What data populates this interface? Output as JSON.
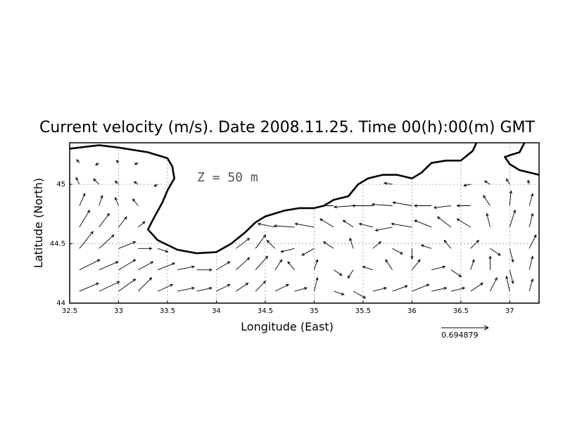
{
  "chart_data": {
    "type": "vector-field",
    "title": "Current velocity (m/s). Date 2008.11.25. Time 00(h):00(m) GMT",
    "xlabel": "Longitude (East)",
    "ylabel": "Latitude (North)",
    "annotation": "Z = 50 m",
    "reference_vector_label": "0.694879",
    "reference_vector_magnitude": 0.694879,
    "xlim": [
      32.5,
      37.3
    ],
    "ylim": [
      44.0,
      45.35
    ],
    "xticks": [
      32.5,
      33,
      33.5,
      34,
      34.5,
      35,
      35.5,
      36,
      36.5,
      37
    ],
    "xtick_labels": [
      "32.5",
      "33",
      "33.5",
      "34",
      "34.5",
      "35",
      "35.5",
      "36",
      "36.5",
      "37"
    ],
    "yticks": [
      44,
      44.5,
      45
    ],
    "ytick_labels": [
      "44",
      "44.5",
      "45"
    ],
    "grid": true,
    "coastline": [
      [
        32.5,
        45.3
      ],
      [
        32.8,
        45.33
      ],
      [
        33.0,
        45.31
      ],
      [
        33.3,
        45.27
      ],
      [
        33.5,
        45.22
      ],
      [
        33.55,
        45.15
      ],
      [
        33.57,
        45.05
      ],
      [
        33.5,
        44.95
      ],
      [
        33.45,
        44.85
      ],
      [
        33.35,
        44.7
      ],
      [
        33.3,
        44.62
      ],
      [
        33.4,
        44.53
      ],
      [
        33.6,
        44.45
      ],
      [
        33.8,
        44.42
      ],
      [
        34.0,
        44.43
      ],
      [
        34.15,
        44.5
      ],
      [
        34.3,
        44.6
      ],
      [
        34.4,
        44.68
      ],
      [
        34.5,
        44.73
      ],
      [
        34.7,
        44.78
      ],
      [
        34.85,
        44.8
      ],
      [
        35.0,
        44.8
      ],
      [
        35.1,
        44.82
      ],
      [
        35.2,
        44.87
      ],
      [
        35.35,
        44.9
      ],
      [
        35.45,
        45.0
      ],
      [
        35.55,
        45.05
      ],
      [
        35.7,
        45.08
      ],
      [
        35.85,
        45.08
      ],
      [
        36.0,
        45.05
      ],
      [
        36.1,
        45.1
      ],
      [
        36.2,
        45.18
      ],
      [
        36.35,
        45.2
      ],
      [
        36.5,
        45.2
      ],
      [
        36.62,
        45.28
      ],
      [
        36.66,
        45.35
      ]
    ],
    "vectors": [
      [
        32.6,
        44.1,
        0.28,
        0.12
      ],
      [
        32.8,
        44.1,
        0.3,
        0.14
      ],
      [
        33.0,
        44.1,
        0.25,
        0.18
      ],
      [
        33.2,
        44.1,
        0.2,
        0.2
      ],
      [
        33.4,
        44.1,
        0.22,
        0.1
      ],
      [
        33.6,
        44.1,
        0.25,
        0.05
      ],
      [
        33.8,
        44.1,
        0.22,
        0.05
      ],
      [
        34.0,
        44.1,
        0.2,
        0.1
      ],
      [
        34.2,
        44.1,
        0.18,
        0.12
      ],
      [
        34.4,
        44.1,
        0.15,
        0.15
      ],
      [
        34.6,
        44.1,
        0.2,
        0.1
      ],
      [
        34.8,
        44.1,
        0.18,
        0.05
      ],
      [
        35.0,
        44.1,
        0.05,
        0.2
      ],
      [
        35.2,
        44.1,
        0.15,
        -0.05
      ],
      [
        35.4,
        44.1,
        0.18,
        -0.1
      ],
      [
        35.6,
        44.1,
        0.2,
        0.05
      ],
      [
        35.8,
        44.1,
        0.22,
        0.08
      ],
      [
        36.0,
        44.1,
        0.25,
        0.1
      ],
      [
        36.2,
        44.1,
        0.22,
        0.05
      ],
      [
        36.4,
        44.1,
        0.2,
        0.05
      ],
      [
        36.6,
        44.1,
        0.18,
        0.12
      ],
      [
        36.8,
        44.1,
        0.1,
        0.2
      ],
      [
        37.0,
        44.1,
        -0.05,
        0.22
      ],
      [
        37.2,
        44.1,
        0.05,
        0.18
      ],
      [
        32.6,
        44.28,
        0.3,
        0.15
      ],
      [
        32.8,
        44.28,
        0.28,
        0.12
      ],
      [
        33.0,
        44.28,
        0.25,
        0.15
      ],
      [
        33.2,
        44.28,
        0.22,
        0.12
      ],
      [
        33.4,
        44.28,
        0.25,
        0.1
      ],
      [
        33.6,
        44.28,
        0.25,
        0.05
      ],
      [
        33.8,
        44.28,
        0.22,
        0.0
      ],
      [
        34.0,
        44.28,
        0.2,
        0.12
      ],
      [
        34.2,
        44.28,
        0.2,
        0.18
      ],
      [
        34.4,
        44.28,
        0.18,
        0.2
      ],
      [
        34.6,
        44.28,
        0.1,
        0.15
      ],
      [
        34.8,
        44.28,
        -0.1,
        0.12
      ],
      [
        35.0,
        44.28,
        0.05,
        0.15
      ],
      [
        35.2,
        44.28,
        0.12,
        -0.08
      ],
      [
        35.4,
        44.28,
        -0.08,
        -0.12
      ],
      [
        35.6,
        44.28,
        -0.15,
        0.05
      ],
      [
        35.8,
        44.28,
        -0.1,
        0.15
      ],
      [
        36.0,
        44.28,
        0.12,
        0.15
      ],
      [
        36.2,
        44.28,
        0.2,
        0.05
      ],
      [
        36.4,
        44.28,
        0.15,
        -0.1
      ],
      [
        36.6,
        44.28,
        0.05,
        0.15
      ],
      [
        36.8,
        44.28,
        0.0,
        0.2
      ],
      [
        37.0,
        44.28,
        0.05,
        -0.2
      ],
      [
        37.2,
        44.28,
        0.05,
        0.2
      ],
      [
        32.6,
        44.46,
        0.2,
        0.25
      ],
      [
        32.8,
        44.46,
        0.22,
        0.2
      ],
      [
        33.0,
        44.46,
        0.25,
        0.1
      ],
      [
        33.2,
        44.46,
        0.2,
        0.0
      ],
      [
        33.4,
        44.46,
        0.15,
        -0.05
      ],
      [
        34.2,
        44.46,
        0.2,
        0.15
      ],
      [
        34.4,
        44.46,
        0.15,
        0.2
      ],
      [
        34.6,
        44.46,
        -0.12,
        0.12
      ],
      [
        34.8,
        44.46,
        -0.2,
        -0.05
      ],
      [
        35.0,
        44.46,
        -0.18,
        -0.1
      ],
      [
        35.2,
        44.46,
        -0.15,
        0.1
      ],
      [
        35.4,
        44.46,
        -0.05,
        0.15
      ],
      [
        35.6,
        44.46,
        0.12,
        0.1
      ],
      [
        35.8,
        44.46,
        0.15,
        -0.08
      ],
      [
        36.0,
        44.46,
        0.0,
        -0.15
      ],
      [
        36.2,
        44.46,
        -0.15,
        0.05
      ],
      [
        36.4,
        44.46,
        -0.1,
        0.12
      ],
      [
        36.6,
        44.46,
        0.12,
        0.12
      ],
      [
        36.8,
        44.46,
        0.15,
        -0.1
      ],
      [
        37.0,
        44.46,
        0.05,
        -0.2
      ],
      [
        37.2,
        44.46,
        0.1,
        0.2
      ],
      [
        32.6,
        44.64,
        0.15,
        0.25
      ],
      [
        32.8,
        44.64,
        0.15,
        0.2
      ],
      [
        33.0,
        44.64,
        0.12,
        0.15
      ],
      [
        33.2,
        44.64,
        0.1,
        0.08
      ],
      [
        34.6,
        44.64,
        -0.25,
        0.05
      ],
      [
        34.8,
        44.64,
        -0.3,
        0.02
      ],
      [
        35.0,
        44.64,
        -0.28,
        0.05
      ],
      [
        35.2,
        44.64,
        -0.2,
        0.12
      ],
      [
        35.4,
        44.64,
        -0.15,
        0.1
      ],
      [
        35.6,
        44.64,
        -0.2,
        0.05
      ],
      [
        35.8,
        44.64,
        -0.25,
        -0.05
      ],
      [
        36.0,
        44.64,
        -0.3,
        0.05
      ],
      [
        36.2,
        44.64,
        -0.25,
        0.1
      ],
      [
        36.4,
        44.64,
        -0.2,
        0.15
      ],
      [
        36.6,
        44.64,
        -0.2,
        0.12
      ],
      [
        36.8,
        44.64,
        -0.05,
        0.2
      ],
      [
        37.0,
        44.64,
        0.08,
        0.25
      ],
      [
        37.2,
        44.64,
        0.05,
        0.2
      ],
      [
        32.6,
        44.82,
        0.08,
        0.18
      ],
      [
        32.8,
        44.82,
        0.05,
        0.15
      ],
      [
        33.0,
        44.82,
        -0.05,
        0.12
      ],
      [
        33.2,
        44.82,
        -0.08,
        0.1
      ],
      [
        35.2,
        44.82,
        -0.25,
        0.0
      ],
      [
        35.4,
        44.82,
        -0.28,
        -0.02
      ],
      [
        35.6,
        44.82,
        -0.3,
        0.0
      ],
      [
        35.8,
        44.82,
        -0.3,
        0.02
      ],
      [
        36.0,
        44.82,
        -0.28,
        0.05
      ],
      [
        36.2,
        44.82,
        -0.25,
        0.0
      ],
      [
        36.4,
        44.82,
        -0.25,
        -0.03
      ],
      [
        36.6,
        44.82,
        -0.2,
        0.0
      ],
      [
        36.8,
        44.82,
        -0.1,
        0.15
      ],
      [
        37.0,
        44.82,
        0.02,
        0.22
      ],
      [
        37.2,
        44.82,
        0.05,
        0.18
      ],
      [
        32.6,
        45.0,
        -0.05,
        0.1
      ],
      [
        32.8,
        45.0,
        -0.08,
        0.08
      ],
      [
        33.0,
        45.0,
        -0.05,
        0.05
      ],
      [
        33.2,
        45.0,
        -0.06,
        0.04
      ],
      [
        33.4,
        45.0,
        -0.05,
        -0.03
      ],
      [
        35.8,
        45.0,
        -0.12,
        0.02
      ],
      [
        36.6,
        45.0,
        -0.1,
        -0.02
      ],
      [
        36.8,
        45.0,
        -0.08,
        0.05
      ],
      [
        37.0,
        45.0,
        -0.05,
        0.08
      ],
      [
        37.2,
        45.0,
        -0.02,
        0.06
      ],
      [
        32.6,
        45.18,
        -0.04,
        0.05
      ],
      [
        32.8,
        45.18,
        -0.05,
        -0.03
      ],
      [
        33.0,
        45.18,
        -0.03,
        0.04
      ],
      [
        33.2,
        45.18,
        -0.05,
        -0.02
      ]
    ]
  }
}
